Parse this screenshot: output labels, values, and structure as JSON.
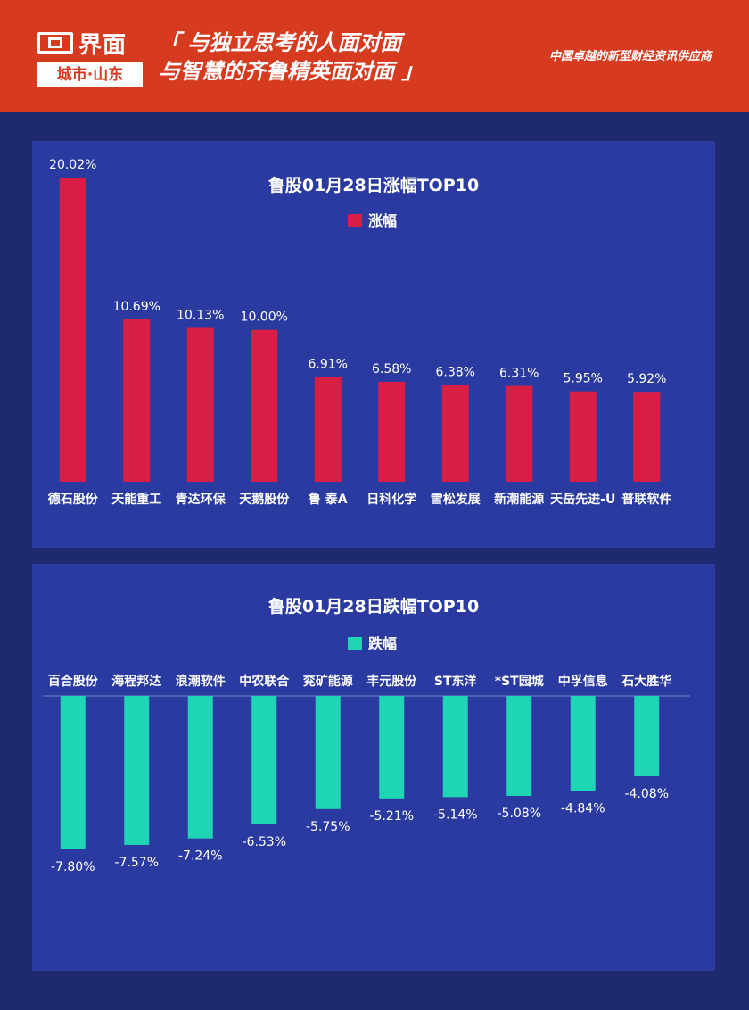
{
  "header": {
    "logo_main": "界面",
    "logo_sub": "城市·山东",
    "slogan_line1": "「 与独立思考的人面对面",
    "slogan_line2": "与智慧的齐鲁精英面对面 」",
    "tagline": "中国卓越的新型财经资讯供应商"
  },
  "colors": {
    "header_bg": "#d63a1f",
    "page_bg": "#1f2a6e",
    "panel_bg": "#2a3aa0",
    "rise": "#d91e45",
    "fall": "#1fd6b4"
  },
  "chart_data": [
    {
      "type": "bar",
      "title": "鲁股01月28日涨幅TOP10",
      "legend": "涨幅",
      "categories": [
        "德石股份",
        "天能重工",
        "青达环保",
        "天鹅股份",
        "鲁  泰A",
        "日科化学",
        "雪松发展",
        "新潮能源",
        "天岳先进-U",
        "普联软件"
      ],
      "values": [
        20.02,
        10.69,
        10.13,
        10.0,
        6.91,
        6.58,
        6.38,
        6.31,
        5.95,
        5.92
      ],
      "labels": [
        "20.02%",
        "10.69%",
        "10.13%",
        "10.00%",
        "6.91%",
        "6.58%",
        "6.38%",
        "6.31%",
        "5.95%",
        "5.92%"
      ],
      "ylim": [
        0,
        20.02
      ],
      "color": "#d91e45"
    },
    {
      "type": "bar",
      "title": "鲁股01月28日跌幅TOP10",
      "legend": "跌幅",
      "categories": [
        "百合股份",
        "海程邦达",
        "浪潮软件",
        "中农联合",
        "兖矿能源",
        "丰元股份",
        "ST东洋",
        "*ST园城",
        "中孚信息",
        "石大胜华"
      ],
      "values": [
        -7.8,
        -7.57,
        -7.24,
        -6.53,
        -5.75,
        -5.21,
        -5.14,
        -5.08,
        -4.84,
        -4.08
      ],
      "labels": [
        "-7.80%",
        "-7.57%",
        "-7.24%",
        "-6.53%",
        "-5.75%",
        "-5.21%",
        "-5.14%",
        "-5.08%",
        "-4.84%",
        "-4.08%"
      ],
      "ylim": [
        -7.8,
        0
      ],
      "color": "#1fd6b4"
    }
  ]
}
